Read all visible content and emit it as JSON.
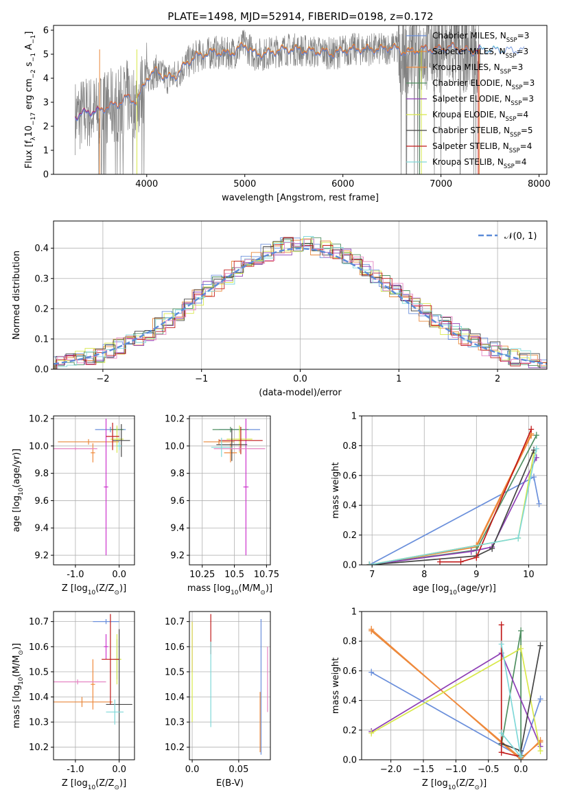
{
  "figure": {
    "title": "PLATE=1498, MJD=52914, FIBERID=0198, z=0.172"
  },
  "chart_data": [
    {
      "id": "spectrum",
      "type": "line",
      "title": "PLATE=1498, MJD=52914, FIBERID=0198, z=0.172",
      "xlabel": "wavelength [Angstrom, rest frame]",
      "ylabel_parts": [
        "Flux [f",
        "λ",
        "10",
        "−17",
        " erg cm",
        "−2",
        " s",
        "−1",
        " A",
        "−1",
        "]"
      ],
      "xlim": [
        3050,
        8080
      ],
      "ylim": [
        0,
        6.2
      ],
      "xticks": [
        4000,
        5000,
        6000,
        7000,
        8000
      ],
      "yticks": [
        0,
        1,
        2,
        3,
        4,
        5,
        6
      ],
      "grid": false,
      "legend_position": "top-right",
      "legend": [
        {
          "label": "Chabrier MILES, N",
          "sub": "SSP",
          "tail": "=3",
          "color": "#6a8fdb"
        },
        {
          "label": "Salpeter MILES, N",
          "sub": "SSP",
          "tail": "=3",
          "color": "#e8873a"
        },
        {
          "label": "Kroupa MILES, N",
          "sub": "SSP",
          "tail": "=3",
          "color": "#f08a3c"
        },
        {
          "label": "Chabrier ELODIE, N",
          "sub": "SSP",
          "tail": "=3",
          "color": "#4f8f60"
        },
        {
          "label": "Salpeter ELODIE, N",
          "sub": "SSP",
          "tail": "=3",
          "color": "#8e3fb5"
        },
        {
          "label": "Kroupa ELODIE, N",
          "sub": "SSP",
          "tail": "=4",
          "color": "#d8e84a"
        },
        {
          "label": "Chabrier STELIB, N",
          "sub": "SSP",
          "tail": "=5",
          "color": "#444444"
        },
        {
          "label": "Salpeter STELIB, N",
          "sub": "SSP",
          "tail": "=4",
          "color": "#c01818"
        },
        {
          "label": "Kroupa STELIB, N",
          "sub": "SSP",
          "tail": "=4",
          "color": "#7fd8d8"
        }
      ],
      "continuum": [
        [
          3270,
          2.4
        ],
        [
          3400,
          2.6
        ],
        [
          3500,
          2.6
        ],
        [
          3600,
          2.8
        ],
        [
          3700,
          2.9
        ],
        [
          3800,
          3.2
        ],
        [
          3900,
          3.0
        ],
        [
          4000,
          4.0
        ],
        [
          4100,
          4.3
        ],
        [
          4200,
          4.0
        ],
        [
          4300,
          4.1
        ],
        [
          4400,
          4.6
        ],
        [
          4500,
          4.9
        ],
        [
          4600,
          5.0
        ],
        [
          4700,
          5.1
        ],
        [
          4800,
          5.0
        ],
        [
          4900,
          5.1
        ],
        [
          5000,
          5.4
        ],
        [
          5100,
          5.0
        ],
        [
          5200,
          5.0
        ],
        [
          5300,
          5.1
        ],
        [
          5400,
          5.2
        ],
        [
          5500,
          5.2
        ],
        [
          5600,
          5.15
        ],
        [
          5700,
          5.1
        ],
        [
          5800,
          5.1
        ],
        [
          5900,
          5.0
        ],
        [
          6000,
          5.15
        ],
        [
          6100,
          5.2
        ],
        [
          6200,
          5.2
        ],
        [
          6300,
          5.2
        ],
        [
          6400,
          5.2
        ],
        [
          6500,
          5.3
        ],
        [
          6600,
          5.1
        ],
        [
          6700,
          5.1
        ],
        [
          6800,
          5.2
        ],
        [
          6900,
          5.2
        ],
        [
          7000,
          5.2
        ],
        [
          7100,
          5.3
        ],
        [
          7200,
          5.2
        ],
        [
          7300,
          5.1
        ],
        [
          7400,
          5.2
        ]
      ]
    },
    {
      "id": "residuals",
      "type": "line",
      "xlabel": "(data-model)/error",
      "ylabel": "Normed distribution",
      "xlim": [
        -2.5,
        2.5
      ],
      "ylim": [
        0,
        0.49
      ],
      "xticks": [
        -2,
        -1,
        0,
        1,
        2
      ],
      "yticks": [
        0.0,
        0.1,
        0.2,
        0.3,
        0.4
      ],
      "grid": true,
      "legend_position": "top-right",
      "legend": [
        {
          "label": "𝒩(0, 1)",
          "color": "#5b8bd8"
        }
      ],
      "bin_width": 0.1
    },
    {
      "id": "age-vs-z",
      "type": "scatter",
      "xlabel_parts": [
        "Z [log",
        "10",
        "(Z/Z",
        "⊙",
        ")]"
      ],
      "ylabel_parts": [
        "age  [log",
        "10",
        "(age/yr)]"
      ],
      "xlim": [
        -1.5,
        0.35
      ],
      "ylim": [
        9.13,
        10.22
      ],
      "xticks": [
        -1,
        0
      ],
      "yticks": [
        9.2,
        9.4,
        9.6,
        9.8,
        10.0,
        10.2
      ],
      "grid": true,
      "points": [
        {
          "x": -0.2,
          "xerr": 0.35,
          "y": 10.12,
          "yerr": 0.02,
          "color": "#6a8fdb"
        },
        {
          "x": -0.7,
          "xerr": 0.7,
          "y": 10.03,
          "yerr": 0.02,
          "color": "#e8873a"
        },
        {
          "x": -0.6,
          "xerr": 0.05,
          "y": 9.95,
          "yerr": 0.07,
          "color": "#f08a3c"
        },
        {
          "x": -0.05,
          "xerr": 0.15,
          "y": 10.12,
          "yerr": 0.02,
          "color": "#4f8f60"
        },
        {
          "x": -0.3,
          "xerr": 0.05,
          "y": 9.7,
          "yerr": 0.5,
          "color": "#cc33cc"
        },
        {
          "x": -0.05,
          "xerr": 0.15,
          "y": 10.05,
          "yerr": 0.1,
          "color": "#d8e84a"
        },
        {
          "x": 0.05,
          "xerr": 0.2,
          "y": 10.04,
          "yerr": 0.12,
          "color": "#444444"
        },
        {
          "x": -0.15,
          "xerr": 0.15,
          "y": 10.07,
          "yerr": 0.1,
          "color": "#c01818"
        },
        {
          "x": -1.0,
          "xerr": 0.5,
          "y": 9.98,
          "yerr": 0.01,
          "color": "#e583c2"
        },
        {
          "x": 0.0,
          "xerr": 0.05,
          "y": 10.0,
          "yerr": 0.03,
          "color": "#7fd8d8"
        }
      ]
    },
    {
      "id": "age-vs-mass",
      "type": "scatter",
      "xlabel_parts": [
        "mass [log",
        "10",
        "(M/M",
        "⊙",
        ")]"
      ],
      "ylabel": "",
      "xlim": [
        10.15,
        10.78
      ],
      "ylim": [
        9.13,
        10.22
      ],
      "xticks": [
        10.25,
        10.5,
        10.75
      ],
      "yticks": [
        9.2,
        9.4,
        9.6,
        9.8,
        10.0,
        10.2
      ],
      "grid": true,
      "points": [
        {
          "x": 10.54,
          "xerr": 0.16,
          "y": 10.12,
          "yerr": 0.02,
          "color": "#6a8fdb"
        },
        {
          "x": 10.38,
          "xerr": 0.12,
          "y": 10.03,
          "yerr": 0.02,
          "color": "#e8873a"
        },
        {
          "x": 10.47,
          "xerr": 0.05,
          "y": 9.95,
          "yerr": 0.07,
          "color": "#f08a3c"
        },
        {
          "x": 10.47,
          "xerr": 0.14,
          "y": 10.12,
          "yerr": 0.02,
          "color": "#4f8f60"
        },
        {
          "x": 10.59,
          "xerr": 0.02,
          "y": 9.7,
          "yerr": 0.5,
          "color": "#cc33cc"
        },
        {
          "x": 10.54,
          "xerr": 0.1,
          "y": 10.05,
          "yerr": 0.1,
          "color": "#d8e84a"
        },
        {
          "x": 10.48,
          "xerr": 0.12,
          "y": 10.01,
          "yerr": 0.12,
          "color": "#444444"
        },
        {
          "x": 10.55,
          "xerr": 0.17,
          "y": 10.04,
          "yerr": 0.1,
          "color": "#c01818"
        },
        {
          "x": 10.54,
          "xerr": 0.2,
          "y": 9.98,
          "yerr": 0.02,
          "color": "#e583c2"
        },
        {
          "x": 10.4,
          "xerr": 0.08,
          "y": 9.99,
          "yerr": 0.07,
          "color": "#7fd8d8"
        }
      ]
    },
    {
      "id": "mass-weight-vs-age",
      "type": "line",
      "xlabel_parts": [
        "age  [log",
        "10",
        "(age/yr)]"
      ],
      "ylabel": "mass weight",
      "xlim": [
        6.8,
        10.35
      ],
      "ylim": [
        0,
        1.0
      ],
      "xticks": [
        7,
        8,
        9,
        10
      ],
      "yticks": [
        0.0,
        0.2,
        0.4,
        0.6,
        0.8,
        1.0
      ],
      "grid": true,
      "series": [
        {
          "color": "#6a8fdb",
          "points": [
            [
              6.95,
              0.0
            ],
            [
              10.1,
              0.59
            ],
            [
              10.2,
              0.41
            ]
          ]
        },
        {
          "color": "#e8873a",
          "points": [
            [
              6.95,
              0.0
            ],
            [
              9.0,
              0.12
            ],
            [
              10.05,
              0.87
            ]
          ]
        },
        {
          "color": "#f08a3c",
          "points": [
            [
              6.95,
              0.0
            ],
            [
              9.0,
              0.13
            ],
            [
              10.05,
              0.88
            ]
          ]
        },
        {
          "color": "#4f8f60",
          "points": [
            [
              6.95,
              0.0
            ],
            [
              9.0,
              0.1
            ],
            [
              10.15,
              0.87
            ]
          ]
        },
        {
          "color": "#8e3fb5",
          "points": [
            [
              6.95,
              0.0
            ],
            [
              8.9,
              0.09
            ],
            [
              9.3,
              0.12
            ],
            [
              10.15,
              0.72
            ]
          ]
        },
        {
          "color": "#d8e84a",
          "points": [
            [
              6.95,
              0.0
            ],
            [
              9.8,
              0.18
            ],
            [
              10.1,
              0.75
            ]
          ]
        },
        {
          "color": "#444444",
          "points": [
            [
              6.95,
              0.0
            ],
            [
              9.0,
              0.06
            ],
            [
              9.3,
              0.11
            ],
            [
              10.1,
              0.77
            ]
          ]
        },
        {
          "color": "#c01818",
          "points": [
            [
              8.3,
              0.02
            ],
            [
              8.7,
              0.02
            ],
            [
              9.0,
              0.05
            ],
            [
              10.05,
              0.91
            ]
          ]
        },
        {
          "color": "#7fd8d8",
          "points": [
            [
              6.95,
              0.0
            ],
            [
              9.8,
              0.18
            ],
            [
              10.15,
              0.78
            ]
          ]
        }
      ]
    },
    {
      "id": "mass-vs-z",
      "type": "scatter",
      "xlabel_parts": [
        "Z [log",
        "10",
        "(Z/Z",
        "⊙",
        ")]"
      ],
      "ylabel_parts": [
        "mass [log",
        "10",
        "(M/M",
        "⊙",
        ")]"
      ],
      "xlim": [
        -1.5,
        0.35
      ],
      "ylim": [
        10.15,
        10.74
      ],
      "xticks": [
        -1,
        0
      ],
      "yticks": [
        10.2,
        10.3,
        10.4,
        10.5,
        10.6,
        10.7
      ],
      "grid": true,
      "points": [
        {
          "x": -0.3,
          "xerr": 0.3,
          "y": 10.7,
          "yerr": 0.01,
          "color": "#6a8fdb"
        },
        {
          "x": -0.85,
          "xerr": 0.7,
          "y": 10.38,
          "yerr": 0.02,
          "color": "#e8873a"
        },
        {
          "x": -0.6,
          "xerr": 0.05,
          "y": 10.45,
          "yerr": 0.1,
          "color": "#f08a3c"
        },
        {
          "x": -0.05,
          "xerr": 0.05,
          "y": 10.55,
          "yerr": 0.08,
          "color": "#4f8f60"
        },
        {
          "x": -0.3,
          "xerr": 0.05,
          "y": 10.6,
          "yerr": 0.05,
          "color": "#cc33cc"
        },
        {
          "x": -0.05,
          "xerr": 0.1,
          "y": 10.55,
          "yerr": 0.1,
          "color": "#d8e84a"
        },
        {
          "x": 0.0,
          "xerr": 0.3,
          "y": 10.37,
          "yerr": 0.3,
          "color": "#444444"
        },
        {
          "x": -0.2,
          "xerr": 0.2,
          "y": 10.55,
          "yerr": 0.18,
          "color": "#c01818"
        },
        {
          "x": -0.95,
          "xerr": 0.65,
          "y": 10.46,
          "yerr": 0.01,
          "color": "#e583c2"
        },
        {
          "x": -0.1,
          "xerr": 0.2,
          "y": 10.34,
          "yerr": 0.05,
          "color": "#7fd8d8"
        }
      ]
    },
    {
      "id": "mass-vs-ebv",
      "type": "scatter",
      "xlabel": "E(B-V)",
      "ylabel": "",
      "xlim": [
        -0.003,
        0.084
      ],
      "ylim": [
        10.15,
        10.74
      ],
      "xticks": [
        0.0,
        0.05
      ],
      "yticks": [
        10.2,
        10.3,
        10.4,
        10.5,
        10.6,
        10.7
      ],
      "grid": true,
      "points": [
        {
          "x": 0.074,
          "y": 10.44,
          "yerr": 0.27,
          "color": "#6a8fdb"
        },
        {
          "x": 0.073,
          "y": 10.3,
          "yerr": 0.12,
          "color": "#e8873a"
        },
        {
          "x": 0.0,
          "y": 10.6,
          "yerr": 0.1,
          "color": "#cc33cc"
        },
        {
          "x": 0.0,
          "y": 10.5,
          "yerr": 0.2,
          "color": "#d8e84a"
        },
        {
          "x": 0.02,
          "y": 10.65,
          "yerr": 0.08,
          "color": "#c01818"
        },
        {
          "x": 0.02,
          "y": 10.45,
          "yerr": 0.17,
          "color": "#7fd8d8"
        },
        {
          "x": 0.081,
          "y": 10.47,
          "yerr": 0.13,
          "color": "#e583c2"
        }
      ]
    },
    {
      "id": "mass-weight-vs-z",
      "type": "line",
      "xlabel_parts": [
        "Z [log",
        "10",
        "(Z/Z",
        "⊙",
        ")]"
      ],
      "ylabel": "mass weight",
      "xlim": [
        -2.45,
        0.4
      ],
      "ylim": [
        0,
        1.0
      ],
      "xticks": [
        -2.0,
        -1.5,
        -1.0,
        -0.5,
        0.0
      ],
      "yticks": [
        0.0,
        0.2,
        0.4,
        0.6,
        0.8,
        1.0
      ],
      "grid": true,
      "series": [
        {
          "color": "#6a8fdb",
          "points": [
            [
              -2.3,
              0.59
            ],
            [
              0.0,
              0.02
            ],
            [
              0.3,
              0.41
            ]
          ]
        },
        {
          "color": "#e8873a",
          "points": [
            [
              -2.3,
              0.87
            ],
            [
              0.0,
              0.01
            ],
            [
              0.3,
              0.12
            ]
          ]
        },
        {
          "color": "#f08a3c",
          "points": [
            [
              -2.3,
              0.88
            ],
            [
              0.0,
              0.0
            ],
            [
              0.3,
              0.13
            ]
          ]
        },
        {
          "color": "#4f8f60",
          "points": [
            [
              -0.3,
              0.1
            ],
            [
              0.0,
              0.87
            ],
            [
              0.0,
              0.03
            ]
          ]
        },
        {
          "color": "#8e3fb5",
          "points": [
            [
              -2.3,
              0.19
            ],
            [
              -0.3,
              0.72
            ],
            [
              0.3,
              0.09
            ]
          ]
        },
        {
          "color": "#d8e84a",
          "points": [
            [
              -2.3,
              0.18
            ],
            [
              0.0,
              0.75
            ],
            [
              0.3,
              0.06
            ]
          ]
        },
        {
          "color": "#444444",
          "points": [
            [
              -0.3,
              0.11
            ],
            [
              0.0,
              0.06
            ],
            [
              0.3,
              0.77
            ]
          ]
        },
        {
          "color": "#c01818",
          "points": [
            [
              -0.3,
              0.91
            ],
            [
              -0.3,
              0.05
            ],
            [
              0.0,
              0.02
            ]
          ]
        },
        {
          "color": "#7fd8d8",
          "points": [
            [
              -0.3,
              0.78
            ],
            [
              0.0,
              0.02
            ],
            [
              -0.3,
              0.18
            ]
          ]
        }
      ]
    }
  ]
}
